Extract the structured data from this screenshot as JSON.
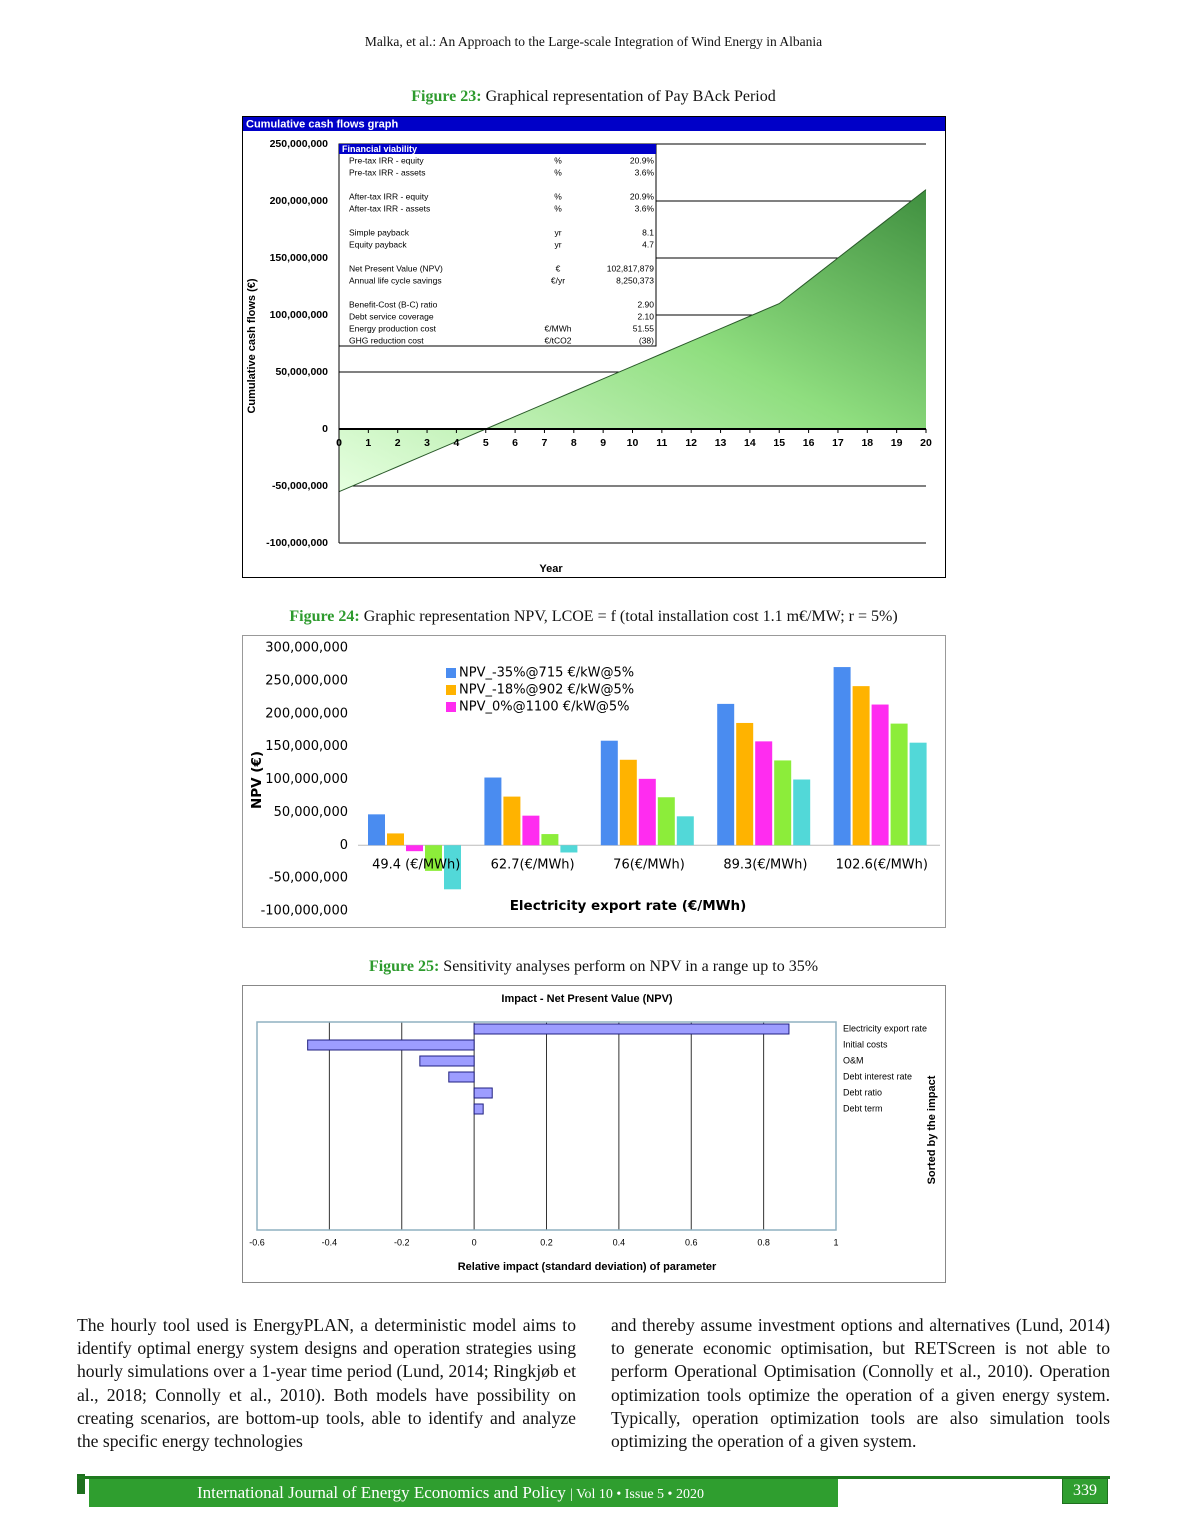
{
  "header": {
    "running_title": "Malka, et al.: An Approach to the Large-scale Integration of Wind Energy in Albania"
  },
  "figures": [
    {
      "label": "Figure 23:",
      "caption": "Graphical representation of Pay BAck Period"
    },
    {
      "label": "Figure 24:",
      "caption": "Graphic representation NPV, LCOE = f (total installation cost 1.1 m€/MW; r = 5%)"
    },
    {
      "label": "Figure 25:",
      "caption": "Sensitivity analyses perform on NPV in a range up to 35%"
    }
  ],
  "chart_data": [
    {
      "type": "area",
      "title": "Cumulative cash flows graph",
      "x_label": "Year",
      "y_label": "Cumulative cash flows (€)",
      "x": [
        0,
        1,
        2,
        3,
        4,
        5,
        6,
        7,
        8,
        9,
        10,
        11,
        12,
        13,
        14,
        15,
        16,
        17,
        18,
        19,
        20
      ],
      "values": [
        -55000000,
        -44000000,
        -33000000,
        -22000000,
        -11000000,
        0,
        11000000,
        22000000,
        33000000,
        44000000,
        55000000,
        66000000,
        77000000,
        88000000,
        99000000,
        110000000,
        130000000,
        150000000,
        170000000,
        190000000,
        210000000
      ],
      "color": "#3f8f3f",
      "xlim": [
        0,
        20
      ],
      "xticks": [
        0,
        1,
        2,
        3,
        4,
        5,
        6,
        7,
        8,
        9,
        10,
        11,
        12,
        13,
        14,
        15,
        16,
        17,
        18,
        19,
        20
      ],
      "ylim": [
        -100000000,
        250000000
      ],
      "yticks": [
        {
          "value": -100000000,
          "label": "-100,000,000"
        },
        {
          "value": -50000000,
          "label": "-50,000,000"
        },
        0,
        {
          "value": 50000000,
          "label": "50,000,000"
        },
        {
          "value": 100000000,
          "label": "100,000,000"
        },
        {
          "value": 150000000,
          "label": "150,000,000"
        },
        {
          "value": 200000000,
          "label": "200,000,000"
        },
        {
          "value": 250000000,
          "label": "250,000,000"
        }
      ],
      "grid": true,
      "table": {
        "title": "Financial viability",
        "groups": [
          [
            {
              "label": "Pre-tax IRR - equity",
              "unit": "%",
              "value": "20.9%"
            },
            {
              "label": "Pre-tax IRR - assets",
              "unit": "%",
              "value": "3.6%"
            }
          ],
          [
            {
              "label": "After-tax IRR - equity",
              "unit": "%",
              "value": "20.9%"
            },
            {
              "label": "After-tax IRR - assets",
              "unit": "%",
              "value": "3.6%"
            }
          ],
          [
            {
              "label": "Simple payback",
              "unit": "yr",
              "value": "8.1"
            },
            {
              "label": "Equity payback",
              "unit": "yr",
              "value": "4.7"
            }
          ],
          [
            {
              "label": "Net Present Value (NPV)",
              "unit": "€",
              "value": "102,817,879"
            },
            {
              "label": "Annual life cycle savings",
              "unit": "€/yr",
              "value": "8,250,373"
            }
          ],
          [
            {
              "label": "Benefit-Cost (B-C) ratio",
              "value": "2.90"
            },
            {
              "label": "Debt service coverage",
              "value": "2.10"
            },
            {
              "label": "Energy production cost",
              "unit": "€/MWh",
              "value": "51.55"
            },
            {
              "label": "GHG reduction cost",
              "unit": "€/tCO2",
              "value": "(38)"
            }
          ]
        ]
      }
    },
    {
      "type": "bar",
      "x_label": "Electricity export rate (€/MWh)",
      "y_label": "NPV (€)",
      "categories": [
        "49.4 (€/MWh)",
        "62.7(€/MWh)",
        "76(€/MWh)",
        "89.3(€/MWh)",
        "102.6(€/MWh)"
      ],
      "series": [
        {
          "name": "NPV_-35%@715 €/kW@5%",
          "color": "#4a8cf0",
          "values": [
            47000000,
            103000000,
            159000000,
            215000000,
            271000000
          ]
        },
        {
          "name": "NPV_-18%@902 €/kW@5%",
          "color": "#ffb300",
          "values": [
            18000000,
            74000000,
            130000000,
            186000000,
            242000000
          ]
        },
        {
          "name": "NPV_0%@1100 €/kW@5%",
          "color": "#ff2cf0",
          "values": [
            -9000000,
            45000000,
            101000000,
            158000000,
            214000000
          ]
        },
        {
          "color": "#8ced3a",
          "values": [
            -39000000,
            17000000,
            73000000,
            129000000,
            185000000
          ]
        },
        {
          "color": "#52d8d8",
          "values": [
            -67000000,
            -11000000,
            44000000,
            100000000,
            156000000
          ]
        }
      ],
      "ylim": [
        -100000000,
        300000000
      ],
      "yticks": [
        {
          "value": -100000000,
          "label": "-100,000,000"
        },
        {
          "value": -50000000,
          "label": "-50,000,000"
        },
        0,
        {
          "value": 50000000,
          "label": "50,000,000"
        },
        {
          "value": 100000000,
          "label": "100,000,000"
        },
        {
          "value": 150000000,
          "label": "150,000,000"
        },
        {
          "value": 200000000,
          "label": "200,000,000"
        },
        {
          "value": 250000000,
          "label": "250,000,000"
        },
        {
          "value": 300000000,
          "label": "300,000,000"
        }
      ],
      "grid": false
    },
    {
      "type": "hbar",
      "title": "Impact - Net Present Value (NPV)",
      "x_label": "Relative impact (standard deviation) of parameter",
      "y_label": "Sorted by the impact",
      "categories": [
        "Electricity export rate",
        "Initial costs",
        "O&M",
        "Debt interest rate",
        "Debt ratio",
        "Debt term"
      ],
      "values": [
        0.87,
        -0.46,
        -0.15,
        -0.07,
        0.05,
        0.025
      ],
      "color": "#9d9dff",
      "xlim": [
        -0.6,
        1
      ],
      "xticks": [
        -0.6,
        -0.4,
        -0.2,
        0,
        0.2,
        0.4,
        0.6,
        0.8,
        1
      ],
      "grid": true
    }
  ],
  "body": {
    "columns": [
      "The hourly tool used is EnergyPLAN, a deterministic model aims to identify optimal energy system designs and operation strategies using hourly simulations over a 1-year time period (Lund, 2014; Ringkjøb et al., 2018; Connolly et al., 2010). Both models have possibility on creating scenarios, are bottom-up tools, able to identify and analyze the specific energy technologies",
      "and thereby assume investment options and alternatives (Lund, 2014) to generate economic optimisation, but RETScreen is not able to perform Operational Optimisation (Connolly et al., 2010). Operation optimization tools optimize the operation of a given energy system. Typically, operation optimization tools are also simulation tools optimizing the operation of a given system."
    ]
  },
  "footer": {
    "journal": "International Journal of Energy Economics and Policy",
    "issue": "| Vol 10 • Issue 5 • 2020",
    "page": "339"
  }
}
